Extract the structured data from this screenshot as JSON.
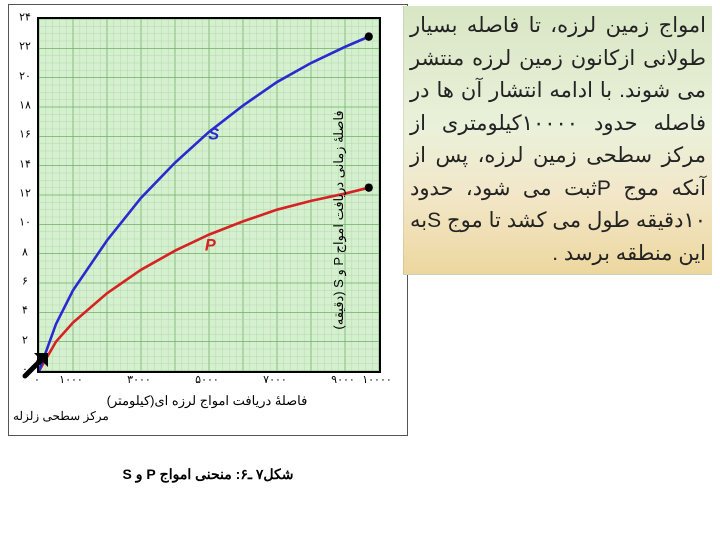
{
  "text": {
    "paragraph": "امواج زمین لرزه، تا فاصله بسیار طولانی ازکانون زمین لرزه منتشر می شوند. با ادامه انتشار آن ها در فاصله حدود ۱۰۰۰۰کیلومتری از مرکز سطحی زمین لرزه، پس از آنکه موج Pثبت می شود، حدود ۱۰دقیقه طول می کشد تا موج Sبه این منطقه برسد ."
  },
  "caption": "شکل۷ ـ۶: منحنی امواج P و S",
  "chart": {
    "type": "line",
    "background_color": "#d4f0cf",
    "border_color": "#000000",
    "grid_minor_color": "#a9cfa1",
    "grid_major_color": "#6fae68",
    "xlabel": "فاصلهٔ دریافت امواج لرزه ای(کیلومتر)",
    "ylabel": "فاصلهٔ زمانی دریافت امواج P و S (دقیقه)",
    "epicenter_label": "مرکز سطحی زلزله",
    "xlim": [
      0,
      10000
    ],
    "ylim": [
      0,
      24
    ],
    "xtick_labels": [
      "۰",
      "۱۰۰۰",
      "۳۰۰۰",
      "۵۰۰۰",
      "۷۰۰۰",
      "۹۰۰۰",
      "۱۰۰۰۰"
    ],
    "xtick_values": [
      0,
      1000,
      3000,
      5000,
      7000,
      9000,
      10000
    ],
    "ytick_labels": [
      "۰",
      "۲",
      "۴",
      "۶",
      "۸",
      "۱۰",
      "۱۲",
      "۱۴",
      "۱۶",
      "۱۸",
      "۲۰",
      "۲۲",
      "۲۴"
    ],
    "ytick_values": [
      0,
      2,
      4,
      6,
      8,
      10,
      12,
      14,
      16,
      18,
      20,
      22,
      24
    ],
    "series": [
      {
        "name": "P",
        "label": "P",
        "label_pos": {
          "x": 5200,
          "y": 8.2
        },
        "color": "#d62222",
        "line_width": 2.5,
        "data": [
          [
            0,
            0
          ],
          [
            500,
            2.0
          ],
          [
            1000,
            3.3
          ],
          [
            2000,
            5.3
          ],
          [
            3000,
            6.9
          ],
          [
            4000,
            8.2
          ],
          [
            5000,
            9.3
          ],
          [
            6000,
            10.2
          ],
          [
            7000,
            11.0
          ],
          [
            8000,
            11.6
          ],
          [
            9000,
            12.1
          ],
          [
            9700,
            12.5
          ]
        ],
        "endpoint_dot": {
          "x": 9700,
          "y": 12.5
        }
      },
      {
        "name": "S",
        "label": "S",
        "label_pos": {
          "x": 5300,
          "y": 15.8
        },
        "color": "#2a2ad0",
        "line_width": 2.5,
        "data": [
          [
            0,
            0
          ],
          [
            500,
            3.2
          ],
          [
            1000,
            5.5
          ],
          [
            2000,
            8.9
          ],
          [
            3000,
            11.8
          ],
          [
            4000,
            14.2
          ],
          [
            5000,
            16.3
          ],
          [
            6000,
            18.1
          ],
          [
            7000,
            19.7
          ],
          [
            8000,
            21.0
          ],
          [
            9000,
            22.1
          ],
          [
            9700,
            22.8
          ]
        ],
        "endpoint_dot": {
          "x": 9700,
          "y": 22.8
        }
      }
    ]
  },
  "colors": {
    "page_bg": "#ffffff",
    "text_color": "#232323"
  }
}
